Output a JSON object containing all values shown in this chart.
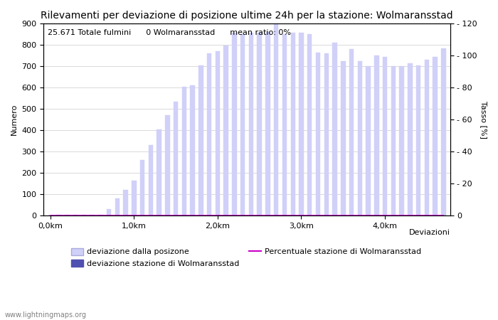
{
  "title": "Rilevamenti per deviazione di posizione ultime 24h per la stazione: Wolmaransstad",
  "subtitle": "25.671 Totale fulmini      0 Wolmaransstad      mean ratio: 0%",
  "xlabel": "Deviazioni",
  "ylabel_left": "Numero",
  "ylabel_right": "Tasso [%]",
  "watermark": "www.lightningmaps.org",
  "bar_color_light": "#d0d0f8",
  "bar_color_dark": "#5050b0",
  "line_color": "#cc00cc",
  "background_color": "#ffffff",
  "grid_color": "#cccccc",
  "ylim_left": [
    0,
    900
  ],
  "ylim_right": [
    0,
    120
  ],
  "yticks_left": [
    0,
    100,
    200,
    300,
    400,
    500,
    600,
    700,
    800,
    900
  ],
  "yticks_right": [
    0,
    20,
    40,
    60,
    80,
    100,
    120
  ],
  "xtick_labels": [
    "0,0km",
    "1,0km",
    "2,0km",
    "3,0km",
    "4,0km"
  ],
  "num_bars": 48,
  "bar_values": [
    2,
    5,
    5,
    5,
    5,
    5,
    5,
    30,
    80,
    120,
    165,
    260,
    330,
    405,
    470,
    535,
    605,
    610,
    705,
    760,
    770,
    795,
    855,
    850,
    855,
    855,
    860,
    900,
    850,
    855,
    855,
    850,
    765,
    760,
    810,
    725,
    780,
    725,
    700,
    750,
    745,
    700,
    700,
    715,
    705,
    730,
    745,
    785
  ],
  "station_values": [
    0,
    0,
    0,
    0,
    0,
    0,
    0,
    0,
    0,
    0,
    0,
    0,
    0,
    0,
    0,
    0,
    0,
    0,
    0,
    0,
    0,
    0,
    0,
    0,
    0,
    0,
    0,
    0,
    0,
    0,
    0,
    0,
    0,
    0,
    0,
    0,
    0,
    0,
    0,
    0,
    0,
    0,
    0,
    0,
    0,
    0,
    0,
    0
  ],
  "ratio_values": [
    0,
    0,
    0,
    0,
    0,
    0,
    0,
    0,
    0,
    0,
    0,
    0,
    0,
    0,
    0,
    0,
    0,
    0,
    0,
    0,
    0,
    0,
    0,
    0,
    0,
    0,
    0,
    0,
    0,
    0,
    0,
    0,
    0,
    0,
    0,
    0,
    0,
    0,
    0,
    0,
    0,
    0,
    0,
    0,
    0,
    0,
    0,
    0
  ],
  "legend_light_label": "deviazione dalla posizone",
  "legend_dark_label": "deviazione stazione di Wolmaransstad",
  "legend_line_label": "Percentuale stazione di Wolmaransstad",
  "title_fontsize": 10,
  "label_fontsize": 8,
  "tick_fontsize": 8,
  "legend_fontsize": 8,
  "subtitle_fontsize": 8
}
